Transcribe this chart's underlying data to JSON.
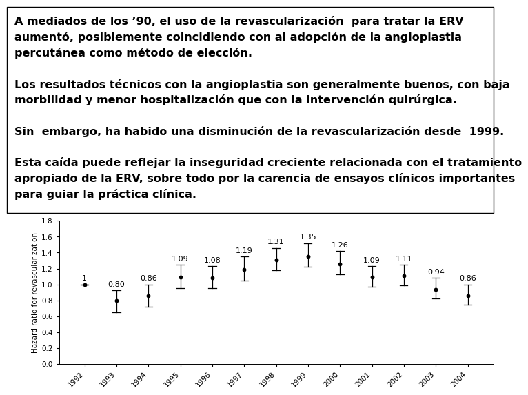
{
  "text_lines": [
    "A mediados de los ’90, el uso de la revascularización  para tratar la ERV",
    "aumentó, posiblemente coincidiendo con al adopción de la angioplastia",
    "percutánea como método de elección.",
    "",
    "Los resultados técnicos con la angioplastia son generalmente buenos, con baja",
    "morbilidad y menor hospitalización que con la intervención quirúrgica.",
    "",
    "Sin  embargo, ha habido una disminución de la revascularización desde  1999.",
    "",
    "Esta caída puede reflejar la inseguridad creciente relacionada con el tratamiento",
    "apropiado de la ERV, sobre todo por la carencia de ensayos clínicos importantes",
    "para guiar la práctica clínica."
  ],
  "years": [
    1992,
    1993,
    1994,
    1995,
    1996,
    1997,
    1998,
    1999,
    2000,
    2001,
    2002,
    2003,
    2004
  ],
  "values": [
    1.0,
    0.8,
    0.86,
    1.09,
    1.08,
    1.19,
    1.31,
    1.35,
    1.26,
    1.09,
    1.11,
    0.94,
    0.86
  ],
  "ci_low": [
    1.0,
    0.65,
    0.72,
    0.95,
    0.95,
    1.05,
    1.18,
    1.22,
    1.13,
    0.97,
    0.99,
    0.82,
    0.75
  ],
  "ci_high": [
    1.0,
    0.93,
    1.0,
    1.25,
    1.23,
    1.35,
    1.46,
    1.52,
    1.42,
    1.23,
    1.25,
    1.08,
    1.0
  ],
  "value_labels": [
    "1",
    "0.80",
    "0.86",
    "1.09",
    "1.08",
    "1.19",
    "1.31",
    "1.35",
    "1.26",
    "1.09",
    "1.11",
    "0.94",
    "0.86"
  ],
  "ylabel": "Hazard ratio for revascularization",
  "ylim": [
    0,
    1.8
  ],
  "yticks": [
    0,
    0.2,
    0.4,
    0.6,
    0.8,
    1.0,
    1.2,
    1.4,
    1.6,
    1.8
  ],
  "bg_color": "#ffffff",
  "text_fontsize": 11.5,
  "label_fontsize": 8.0,
  "axis_fontsize": 7.5
}
